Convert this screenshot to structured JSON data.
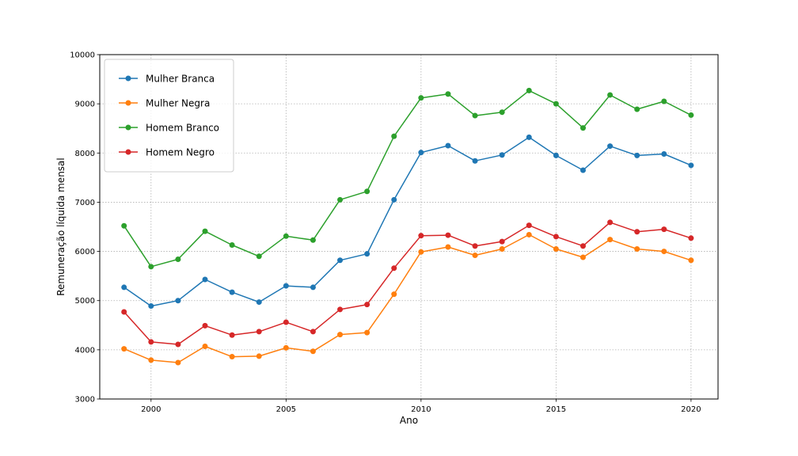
{
  "chart_data": {
    "type": "line",
    "title": "",
    "xlabel": "Ano",
    "ylabel": "Remuneração líquida mensal",
    "xlim": [
      1998.1,
      2021.0
    ],
    "ylim": [
      3000,
      10000
    ],
    "xticks": [
      2000,
      2005,
      2010,
      2015,
      2020
    ],
    "yticks": [
      3000,
      4000,
      5000,
      6000,
      7000,
      8000,
      9000,
      10000
    ],
    "grid": true,
    "legend_position": "top-left",
    "x": [
      1999,
      2000,
      2001,
      2002,
      2003,
      2004,
      2005,
      2006,
      2007,
      2008,
      2009,
      2010,
      2011,
      2012,
      2013,
      2014,
      2015,
      2016,
      2017,
      2018,
      2019,
      2020
    ],
    "series": [
      {
        "name": "Mulher Branca",
        "color": "#1f77b4",
        "values": [
          5270,
          4890,
          5000,
          5430,
          5170,
          4970,
          5300,
          5270,
          5820,
          5950,
          7050,
          8010,
          8150,
          7840,
          7960,
          8320,
          7950,
          7650,
          8140,
          7950,
          7980,
          7750
        ]
      },
      {
        "name": "Mulher Negra",
        "color": "#ff7f0e",
        "values": [
          4020,
          3790,
          3740,
          4070,
          3860,
          3870,
          4040,
          3970,
          4310,
          4350,
          5130,
          5990,
          6090,
          5920,
          6050,
          6340,
          6050,
          5880,
          6240,
          6050,
          6000,
          5820
        ]
      },
      {
        "name": "Homem Branco",
        "color": "#2ca02c",
        "values": [
          6520,
          5690,
          5840,
          6410,
          6130,
          5900,
          6310,
          6230,
          7050,
          7220,
          8340,
          9120,
          9200,
          8760,
          8830,
          9270,
          9000,
          8510,
          9180,
          8890,
          9050,
          8770
        ]
      },
      {
        "name": "Homem Negro",
        "color": "#d62728",
        "values": [
          4770,
          4160,
          4110,
          4490,
          4300,
          4370,
          4560,
          4370,
          4820,
          4920,
          5660,
          6320,
          6330,
          6110,
          6200,
          6530,
          6300,
          6110,
          6590,
          6400,
          6450,
          6270
        ]
      }
    ]
  }
}
